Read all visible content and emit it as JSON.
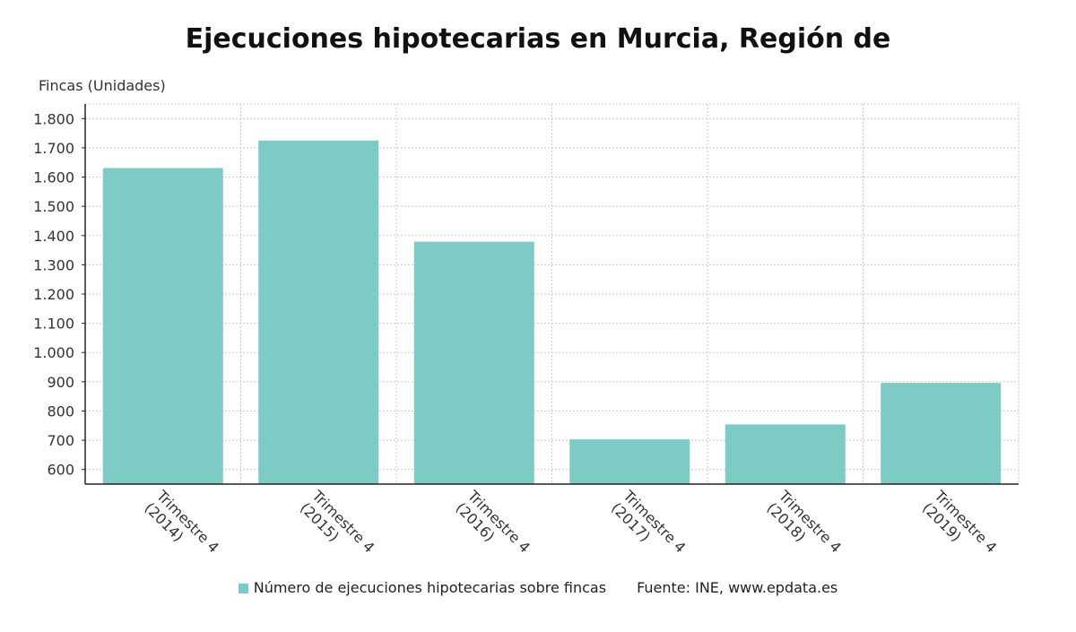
{
  "chart_data": {
    "type": "bar",
    "title": "Ejecuciones hipotecarias en Murcia, Región de",
    "ylabel": "Fincas (Unidades)",
    "xlabel": "",
    "categories": [
      [
        "Trimestre 4",
        "(2014)"
      ],
      [
        "Trimestre 4",
        "(2015)"
      ],
      [
        "Trimestre 4",
        "(2016)"
      ],
      [
        "Trimestre 4",
        "(2017)"
      ],
      [
        "Trimestre 4",
        "(2018)"
      ],
      [
        "Trimestre 4",
        "(2019)"
      ]
    ],
    "series": [
      {
        "name": "Número de ejecuciones hipotecarias sobre fincas",
        "values": [
          1631,
          1725,
          1379,
          703,
          754,
          896
        ]
      }
    ],
    "ylim": [
      550,
      1850
    ],
    "yticks": [
      600,
      700,
      800,
      900,
      1000,
      1100,
      1200,
      1300,
      1400,
      1500,
      1600,
      1700,
      1800
    ],
    "ytick_labels": [
      "600",
      "700",
      "800",
      "900",
      "1.000",
      "1.100",
      "1.200",
      "1.300",
      "1.400",
      "1.500",
      "1.600",
      "1.700",
      "1.800"
    ],
    "grid": true,
    "legend_position": "bottom",
    "bar_color": "#7ccbc4"
  },
  "legend": {
    "series_label": "Número de ejecuciones hipotecarias sobre fincas",
    "source": "Fuente: INE, www.epdata.es"
  }
}
